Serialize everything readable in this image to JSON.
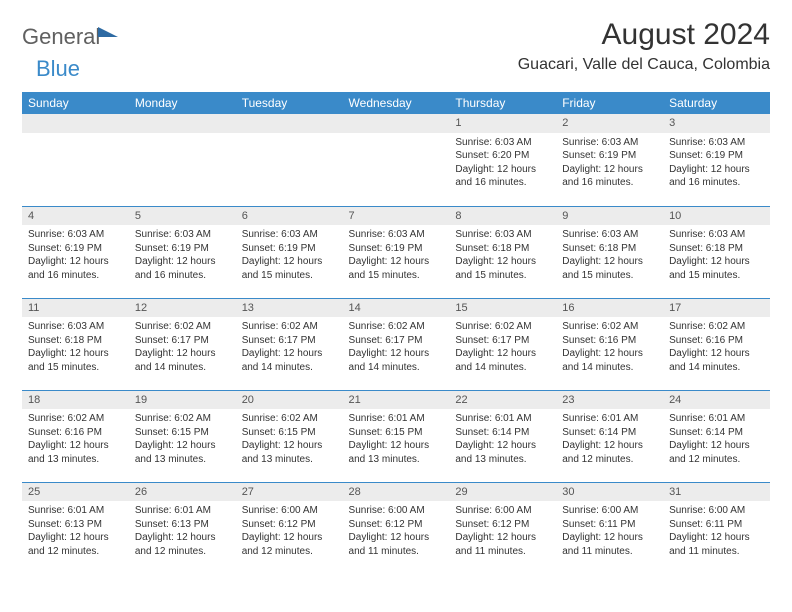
{
  "brand": {
    "part1": "General",
    "part2": "Blue"
  },
  "title": "August 2024",
  "location": "Guacari, Valle del Cauca, Colombia",
  "weekday_header_bg": "#3a8ac9",
  "weekday_header_fg": "#ffffff",
  "daynum_bg": "#ececec",
  "row_divider_color": "#3a8ac9",
  "weekdays": [
    "Sunday",
    "Monday",
    "Tuesday",
    "Wednesday",
    "Thursday",
    "Friday",
    "Saturday"
  ],
  "weeks": [
    [
      null,
      null,
      null,
      null,
      {
        "n": "1",
        "sr": "Sunrise: 6:03 AM",
        "ss": "Sunset: 6:20 PM",
        "d1": "Daylight: 12 hours",
        "d2": "and 16 minutes."
      },
      {
        "n": "2",
        "sr": "Sunrise: 6:03 AM",
        "ss": "Sunset: 6:19 PM",
        "d1": "Daylight: 12 hours",
        "d2": "and 16 minutes."
      },
      {
        "n": "3",
        "sr": "Sunrise: 6:03 AM",
        "ss": "Sunset: 6:19 PM",
        "d1": "Daylight: 12 hours",
        "d2": "and 16 minutes."
      }
    ],
    [
      {
        "n": "4",
        "sr": "Sunrise: 6:03 AM",
        "ss": "Sunset: 6:19 PM",
        "d1": "Daylight: 12 hours",
        "d2": "and 16 minutes."
      },
      {
        "n": "5",
        "sr": "Sunrise: 6:03 AM",
        "ss": "Sunset: 6:19 PM",
        "d1": "Daylight: 12 hours",
        "d2": "and 16 minutes."
      },
      {
        "n": "6",
        "sr": "Sunrise: 6:03 AM",
        "ss": "Sunset: 6:19 PM",
        "d1": "Daylight: 12 hours",
        "d2": "and 15 minutes."
      },
      {
        "n": "7",
        "sr": "Sunrise: 6:03 AM",
        "ss": "Sunset: 6:19 PM",
        "d1": "Daylight: 12 hours",
        "d2": "and 15 minutes."
      },
      {
        "n": "8",
        "sr": "Sunrise: 6:03 AM",
        "ss": "Sunset: 6:18 PM",
        "d1": "Daylight: 12 hours",
        "d2": "and 15 minutes."
      },
      {
        "n": "9",
        "sr": "Sunrise: 6:03 AM",
        "ss": "Sunset: 6:18 PM",
        "d1": "Daylight: 12 hours",
        "d2": "and 15 minutes."
      },
      {
        "n": "10",
        "sr": "Sunrise: 6:03 AM",
        "ss": "Sunset: 6:18 PM",
        "d1": "Daylight: 12 hours",
        "d2": "and 15 minutes."
      }
    ],
    [
      {
        "n": "11",
        "sr": "Sunrise: 6:03 AM",
        "ss": "Sunset: 6:18 PM",
        "d1": "Daylight: 12 hours",
        "d2": "and 15 minutes."
      },
      {
        "n": "12",
        "sr": "Sunrise: 6:02 AM",
        "ss": "Sunset: 6:17 PM",
        "d1": "Daylight: 12 hours",
        "d2": "and 14 minutes."
      },
      {
        "n": "13",
        "sr": "Sunrise: 6:02 AM",
        "ss": "Sunset: 6:17 PM",
        "d1": "Daylight: 12 hours",
        "d2": "and 14 minutes."
      },
      {
        "n": "14",
        "sr": "Sunrise: 6:02 AM",
        "ss": "Sunset: 6:17 PM",
        "d1": "Daylight: 12 hours",
        "d2": "and 14 minutes."
      },
      {
        "n": "15",
        "sr": "Sunrise: 6:02 AM",
        "ss": "Sunset: 6:17 PM",
        "d1": "Daylight: 12 hours",
        "d2": "and 14 minutes."
      },
      {
        "n": "16",
        "sr": "Sunrise: 6:02 AM",
        "ss": "Sunset: 6:16 PM",
        "d1": "Daylight: 12 hours",
        "d2": "and 14 minutes."
      },
      {
        "n": "17",
        "sr": "Sunrise: 6:02 AM",
        "ss": "Sunset: 6:16 PM",
        "d1": "Daylight: 12 hours",
        "d2": "and 14 minutes."
      }
    ],
    [
      {
        "n": "18",
        "sr": "Sunrise: 6:02 AM",
        "ss": "Sunset: 6:16 PM",
        "d1": "Daylight: 12 hours",
        "d2": "and 13 minutes."
      },
      {
        "n": "19",
        "sr": "Sunrise: 6:02 AM",
        "ss": "Sunset: 6:15 PM",
        "d1": "Daylight: 12 hours",
        "d2": "and 13 minutes."
      },
      {
        "n": "20",
        "sr": "Sunrise: 6:02 AM",
        "ss": "Sunset: 6:15 PM",
        "d1": "Daylight: 12 hours",
        "d2": "and 13 minutes."
      },
      {
        "n": "21",
        "sr": "Sunrise: 6:01 AM",
        "ss": "Sunset: 6:15 PM",
        "d1": "Daylight: 12 hours",
        "d2": "and 13 minutes."
      },
      {
        "n": "22",
        "sr": "Sunrise: 6:01 AM",
        "ss": "Sunset: 6:14 PM",
        "d1": "Daylight: 12 hours",
        "d2": "and 13 minutes."
      },
      {
        "n": "23",
        "sr": "Sunrise: 6:01 AM",
        "ss": "Sunset: 6:14 PM",
        "d1": "Daylight: 12 hours",
        "d2": "and 12 minutes."
      },
      {
        "n": "24",
        "sr": "Sunrise: 6:01 AM",
        "ss": "Sunset: 6:14 PM",
        "d1": "Daylight: 12 hours",
        "d2": "and 12 minutes."
      }
    ],
    [
      {
        "n": "25",
        "sr": "Sunrise: 6:01 AM",
        "ss": "Sunset: 6:13 PM",
        "d1": "Daylight: 12 hours",
        "d2": "and 12 minutes."
      },
      {
        "n": "26",
        "sr": "Sunrise: 6:01 AM",
        "ss": "Sunset: 6:13 PM",
        "d1": "Daylight: 12 hours",
        "d2": "and 12 minutes."
      },
      {
        "n": "27",
        "sr": "Sunrise: 6:00 AM",
        "ss": "Sunset: 6:12 PM",
        "d1": "Daylight: 12 hours",
        "d2": "and 12 minutes."
      },
      {
        "n": "28",
        "sr": "Sunrise: 6:00 AM",
        "ss": "Sunset: 6:12 PM",
        "d1": "Daylight: 12 hours",
        "d2": "and 11 minutes."
      },
      {
        "n": "29",
        "sr": "Sunrise: 6:00 AM",
        "ss": "Sunset: 6:12 PM",
        "d1": "Daylight: 12 hours",
        "d2": "and 11 minutes."
      },
      {
        "n": "30",
        "sr": "Sunrise: 6:00 AM",
        "ss": "Sunset: 6:11 PM",
        "d1": "Daylight: 12 hours",
        "d2": "and 11 minutes."
      },
      {
        "n": "31",
        "sr": "Sunrise: 6:00 AM",
        "ss": "Sunset: 6:11 PM",
        "d1": "Daylight: 12 hours",
        "d2": "and 11 minutes."
      }
    ]
  ]
}
